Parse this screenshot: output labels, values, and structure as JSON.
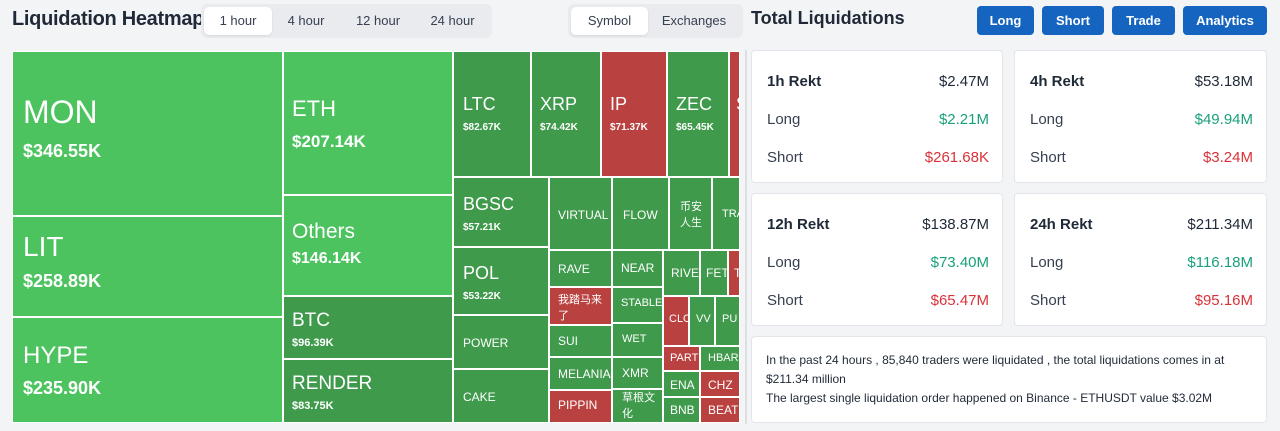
{
  "header": {
    "title": "Liquidation Heatmap",
    "time_tabs": [
      "1 hour",
      "4 hour",
      "12 hour",
      "24 hour"
    ],
    "active_time_tab": "1 hour",
    "view_tabs": [
      "Symbol",
      "Exchanges"
    ],
    "active_view_tab": "Symbol"
  },
  "colors": {
    "light_green": "#4cc35f",
    "dark_green": "#3f9a4c",
    "red": "#b9413f",
    "button_blue": "#1565c0",
    "long_green": "#1aa07c",
    "short_red": "#d9323a"
  },
  "heatmap": [
    {
      "name": "MON",
      "value": "$346.55K"
    },
    {
      "name": "LIT",
      "value": "$258.89K"
    },
    {
      "name": "HYPE",
      "value": "$235.90K"
    },
    {
      "name": "ETH",
      "value": "$207.14K"
    },
    {
      "name": "Others",
      "value": "$146.14K"
    },
    {
      "name": "BTC",
      "value": "$96.39K"
    },
    {
      "name": "RENDER",
      "value": "$83.75K"
    },
    {
      "name": "LTC",
      "value": "$82.67K"
    },
    {
      "name": "XRP",
      "value": "$74.42K"
    },
    {
      "name": "IP",
      "value": "$71.37K"
    },
    {
      "name": "ZEC",
      "value": "$65.45K"
    },
    {
      "name": "S",
      "value": ""
    },
    {
      "name": "BGSC",
      "value": "$57.21K"
    },
    {
      "name": "POL",
      "value": "$53.22K"
    },
    {
      "name": "POWER",
      "value": ""
    },
    {
      "name": "CAKE",
      "value": ""
    },
    {
      "name": "VIRTUAL",
      "value": ""
    },
    {
      "name": "FLOW",
      "value": ""
    },
    {
      "name": "币安人生",
      "value": ""
    },
    {
      "name": "TRA",
      "value": ""
    },
    {
      "name": "RAVE",
      "value": ""
    },
    {
      "name": "NEAR",
      "value": ""
    },
    {
      "name": "RIVE",
      "value": ""
    },
    {
      "name": "FET",
      "value": ""
    },
    {
      "name": "T",
      "value": ""
    },
    {
      "name": "我踏马来了",
      "value": ""
    },
    {
      "name": "STABLE",
      "value": ""
    },
    {
      "name": "CLO",
      "value": ""
    },
    {
      "name": "VV",
      "value": ""
    },
    {
      "name": "PU",
      "value": ""
    },
    {
      "name": "SUI",
      "value": ""
    },
    {
      "name": "WET",
      "value": ""
    },
    {
      "name": "PARTI",
      "value": ""
    },
    {
      "name": "HBAR",
      "value": ""
    },
    {
      "name": "MELANIA",
      "value": ""
    },
    {
      "name": "XMR",
      "value": ""
    },
    {
      "name": "ENA",
      "value": ""
    },
    {
      "name": "CHZ",
      "value": ""
    },
    {
      "name": "PIPPIN",
      "value": ""
    },
    {
      "name": "草根文化",
      "value": ""
    },
    {
      "name": "BNB",
      "value": ""
    },
    {
      "name": "BEAT",
      "value": ""
    }
  ],
  "total": {
    "title": "Total Liquidations",
    "buttons": [
      "Long",
      "Short",
      "Trade",
      "Analytics"
    ],
    "cards": [
      {
        "label": "1h Rekt",
        "total": "$2.47M",
        "long_label": "Long",
        "long": "$2.21M",
        "short_label": "Short",
        "short": "$261.68K"
      },
      {
        "label": "4h Rekt",
        "total": "$53.18M",
        "long_label": "Long",
        "long": "$49.94M",
        "short_label": "Short",
        "short": "$3.24M"
      },
      {
        "label": "12h Rekt",
        "total": "$138.87M",
        "long_label": "Long",
        "long": "$73.40M",
        "short_label": "Short",
        "short": "$65.47M"
      },
      {
        "label": "24h Rekt",
        "total": "$211.34M",
        "long_label": "Long",
        "long": "$116.18M",
        "short_label": "Short",
        "short": "$95.16M"
      }
    ],
    "summary_line1": "In the past 24 hours , 85,840 traders were liquidated , the total liquidations comes in at $211.34 million",
    "summary_line2": "The largest single liquidation order happened on Binance - ETHUSDT value $3.02M"
  }
}
